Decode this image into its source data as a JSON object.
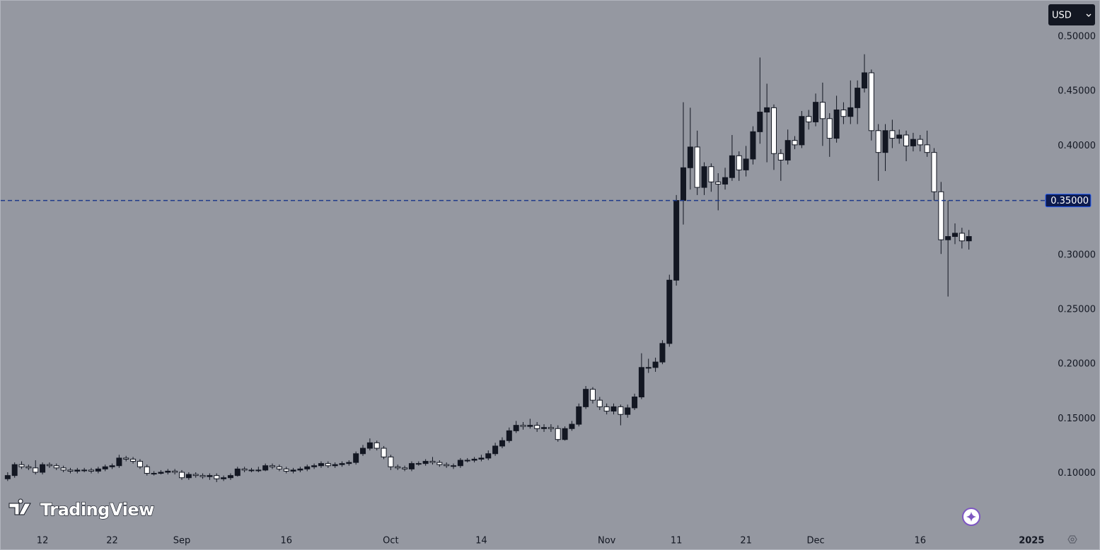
{
  "chart_data": {
    "type": "candlestick",
    "currency": "USD",
    "logo": "TradingView",
    "up_color": "#131722",
    "down_color": "#ffffff",
    "wick_color": "#131722",
    "price_line": {
      "value": 0.35,
      "label": "0.35000",
      "color": "#1e3a8a"
    },
    "xlim": [
      -6,
      144
    ],
    "ylim": [
      0.0466,
      0.5337
    ],
    "yticks": [
      {
        "value": 0.1,
        "label": "0.10000"
      },
      {
        "value": 0.15,
        "label": "0.15000"
      },
      {
        "value": 0.2,
        "label": "0.20000"
      },
      {
        "value": 0.25,
        "label": "0.25000"
      },
      {
        "value": 0.3,
        "label": "0.30000"
      },
      {
        "value": 0.4,
        "label": "0.40000"
      },
      {
        "value": 0.45,
        "label": "0.45000"
      },
      {
        "value": 0.5,
        "label": "0.50000"
      }
    ],
    "xticks": [
      {
        "value": 0,
        "label": "12"
      },
      {
        "value": 10,
        "label": "22"
      },
      {
        "value": 20,
        "label": "Sep"
      },
      {
        "value": 35,
        "label": "16"
      },
      {
        "value": 50,
        "label": "Oct"
      },
      {
        "value": 63,
        "label": "14"
      },
      {
        "value": 81,
        "label": "Nov"
      },
      {
        "value": 91,
        "label": "11"
      },
      {
        "value": 101,
        "label": "21"
      },
      {
        "value": 111,
        "label": "Dec"
      },
      {
        "value": 126,
        "label": "16"
      },
      {
        "value": 142,
        "label": "2025"
      }
    ],
    "x": [
      -5,
      -4,
      -3,
      -2,
      -1,
      0,
      1,
      2,
      3,
      4,
      5,
      6,
      7,
      8,
      9,
      10,
      11,
      12,
      13,
      14,
      15,
      16,
      17,
      18,
      19,
      20,
      21,
      22,
      23,
      24,
      25,
      26,
      27,
      28,
      29,
      30,
      31,
      32,
      33,
      34,
      35,
      36,
      37,
      38,
      39,
      40,
      41,
      42,
      43,
      44,
      45,
      46,
      47,
      48,
      49,
      50,
      51,
      52,
      53,
      54,
      55,
      56,
      57,
      58,
      59,
      60,
      61,
      62,
      63,
      64,
      65,
      66,
      67,
      68,
      69,
      70,
      71,
      72,
      73,
      74,
      75,
      76,
      77,
      78,
      79,
      80,
      81,
      82,
      83,
      84,
      85,
      86,
      87,
      88,
      89,
      90,
      91,
      92,
      93,
      94,
      95,
      96,
      97,
      98,
      99,
      100,
      101,
      102,
      103,
      104,
      105,
      106,
      107,
      108,
      109,
      110,
      111,
      112,
      113,
      114,
      115,
      116,
      117,
      118,
      119,
      120,
      121,
      122,
      123,
      124,
      125,
      126,
      127,
      128,
      129,
      130,
      131,
      132,
      133
    ],
    "open": [
      0.095,
      0.098,
      0.108,
      0.106,
      0.105,
      0.101,
      0.108,
      0.107,
      0.105,
      0.103,
      0.102,
      0.103,
      0.103,
      0.102,
      0.104,
      0.106,
      0.107,
      0.114,
      0.113,
      0.111,
      0.106,
      0.1,
      0.1,
      0.101,
      0.102,
      0.101,
      0.096,
      0.099,
      0.098,
      0.097,
      0.098,
      0.095,
      0.096,
      0.098,
      0.104,
      0.103,
      0.103,
      0.103,
      0.107,
      0.106,
      0.104,
      0.102,
      0.103,
      0.104,
      0.106,
      0.107,
      0.109,
      0.107,
      0.108,
      0.109,
      0.11,
      0.118,
      0.123,
      0.128,
      0.123,
      0.115,
      0.106,
      0.105,
      0.104,
      0.109,
      0.109,
      0.111,
      0.11,
      0.108,
      0.107,
      0.107,
      0.112,
      0.112,
      0.113,
      0.114,
      0.118,
      0.125,
      0.13,
      0.139,
      0.144,
      0.143,
      0.144,
      0.141,
      0.142,
      0.141,
      0.131,
      0.141,
      0.145,
      0.161,
      0.177,
      0.167,
      0.161,
      0.157,
      0.161,
      0.154,
      0.16,
      0.17,
      0.197,
      0.197,
      0.202,
      0.219,
      0.277,
      0.35,
      0.38,
      0.399,
      0.362,
      0.381,
      0.367,
      0.365,
      0.371,
      0.391,
      0.378,
      0.388,
      0.413,
      0.431,
      0.435,
      0.393,
      0.387,
      0.405,
      0.401,
      0.427,
      0.422,
      0.44,
      0.425,
      0.407,
      0.433,
      0.427,
      0.435,
      0.453,
      0.467,
      0.414,
      0.394,
      0.414,
      0.407,
      0.41,
      0.4,
      0.406,
      0.401,
      0.394,
      0.358,
      0.314,
      0.317,
      0.32,
      0.313
    ],
    "high": [
      0.101,
      0.11,
      0.111,
      0.108,
      0.112,
      0.11,
      0.11,
      0.109,
      0.107,
      0.105,
      0.105,
      0.105,
      0.105,
      0.106,
      0.108,
      0.109,
      0.117,
      0.116,
      0.115,
      0.113,
      0.108,
      0.102,
      0.103,
      0.104,
      0.104,
      0.103,
      0.101,
      0.101,
      0.1,
      0.1,
      0.1,
      0.098,
      0.1,
      0.106,
      0.106,
      0.105,
      0.106,
      0.109,
      0.109,
      0.108,
      0.106,
      0.105,
      0.106,
      0.108,
      0.109,
      0.111,
      0.111,
      0.11,
      0.111,
      0.112,
      0.12,
      0.126,
      0.132,
      0.13,
      0.125,
      0.117,
      0.108,
      0.107,
      0.111,
      0.111,
      0.113,
      0.115,
      0.112,
      0.11,
      0.109,
      0.114,
      0.114,
      0.115,
      0.117,
      0.121,
      0.128,
      0.133,
      0.142,
      0.148,
      0.147,
      0.15,
      0.147,
      0.145,
      0.145,
      0.144,
      0.143,
      0.148,
      0.164,
      0.18,
      0.179,
      0.17,
      0.164,
      0.164,
      0.163,
      0.163,
      0.173,
      0.21,
      0.205,
      0.206,
      0.222,
      0.282,
      0.355,
      0.44,
      0.435,
      0.414,
      0.385,
      0.384,
      0.375,
      0.38,
      0.41,
      0.395,
      0.4,
      0.418,
      0.481,
      0.457,
      0.438,
      0.397,
      0.415,
      0.409,
      0.432,
      0.433,
      0.448,
      0.458,
      0.43,
      0.446,
      0.44,
      0.46,
      0.46,
      0.484,
      0.47,
      0.42,
      0.42,
      0.424,
      0.415,
      0.414,
      0.412,
      0.41,
      0.414,
      0.398,
      0.367,
      0.35,
      0.329,
      0.325,
      0.323
    ],
    "low": [
      0.093,
      0.096,
      0.104,
      0.103,
      0.099,
      0.099,
      0.105,
      0.103,
      0.101,
      0.1,
      0.1,
      0.101,
      0.1,
      0.1,
      0.102,
      0.104,
      0.105,
      0.111,
      0.109,
      0.104,
      0.098,
      0.098,
      0.099,
      0.099,
      0.099,
      0.094,
      0.094,
      0.096,
      0.095,
      0.094,
      0.092,
      0.093,
      0.094,
      0.097,
      0.101,
      0.101,
      0.101,
      0.102,
      0.104,
      0.102,
      0.1,
      0.1,
      0.101,
      0.102,
      0.104,
      0.105,
      0.105,
      0.105,
      0.106,
      0.107,
      0.108,
      0.116,
      0.121,
      0.121,
      0.113,
      0.103,
      0.103,
      0.102,
      0.102,
      0.107,
      0.107,
      0.108,
      0.106,
      0.105,
      0.104,
      0.105,
      0.11,
      0.11,
      0.111,
      0.112,
      0.116,
      0.123,
      0.128,
      0.137,
      0.14,
      0.141,
      0.138,
      0.138,
      0.138,
      0.129,
      0.13,
      0.139,
      0.143,
      0.159,
      0.164,
      0.158,
      0.154,
      0.154,
      0.144,
      0.151,
      0.158,
      0.168,
      0.192,
      0.193,
      0.2,
      0.216,
      0.272,
      0.328,
      0.36,
      0.355,
      0.355,
      0.358,
      0.341,
      0.36,
      0.368,
      0.368,
      0.372,
      0.383,
      0.402,
      0.385,
      0.378,
      0.368,
      0.383,
      0.397,
      0.398,
      0.415,
      0.418,
      0.4,
      0.39,
      0.403,
      0.42,
      0.42,
      0.42,
      0.449,
      0.405,
      0.368,
      0.377,
      0.398,
      0.402,
      0.386,
      0.395,
      0.395,
      0.39,
      0.35,
      0.301,
      0.262,
      0.31,
      0.306,
      0.305
    ],
    "close": [
      0.098,
      0.108,
      0.106,
      0.105,
      0.101,
      0.108,
      0.107,
      0.105,
      0.103,
      0.102,
      0.103,
      0.103,
      0.102,
      0.104,
      0.106,
      0.107,
      0.114,
      0.113,
      0.111,
      0.106,
      0.1,
      0.1,
      0.101,
      0.102,
      0.101,
      0.096,
      0.099,
      0.098,
      0.097,
      0.098,
      0.095,
      0.096,
      0.098,
      0.104,
      0.103,
      0.103,
      0.103,
      0.107,
      0.106,
      0.104,
      0.102,
      0.103,
      0.104,
      0.106,
      0.107,
      0.109,
      0.107,
      0.108,
      0.109,
      0.11,
      0.118,
      0.123,
      0.128,
      0.123,
      0.115,
      0.106,
      0.105,
      0.104,
      0.109,
      0.109,
      0.111,
      0.11,
      0.108,
      0.107,
      0.107,
      0.112,
      0.112,
      0.113,
      0.114,
      0.118,
      0.125,
      0.13,
      0.139,
      0.144,
      0.143,
      0.144,
      0.141,
      0.142,
      0.141,
      0.131,
      0.141,
      0.145,
      0.161,
      0.177,
      0.167,
      0.161,
      0.157,
      0.161,
      0.154,
      0.16,
      0.17,
      0.197,
      0.197,
      0.202,
      0.219,
      0.277,
      0.35,
      0.38,
      0.399,
      0.362,
      0.381,
      0.367,
      0.365,
      0.371,
      0.391,
      0.378,
      0.388,
      0.413,
      0.431,
      0.435,
      0.393,
      0.387,
      0.405,
      0.401,
      0.427,
      0.422,
      0.44,
      0.425,
      0.407,
      0.433,
      0.427,
      0.435,
      0.453,
      0.467,
      0.414,
      0.394,
      0.414,
      0.407,
      0.41,
      0.4,
      0.406,
      0.401,
      0.394,
      0.358,
      0.314,
      0.317,
      0.32,
      0.313,
      0.317
    ]
  }
}
